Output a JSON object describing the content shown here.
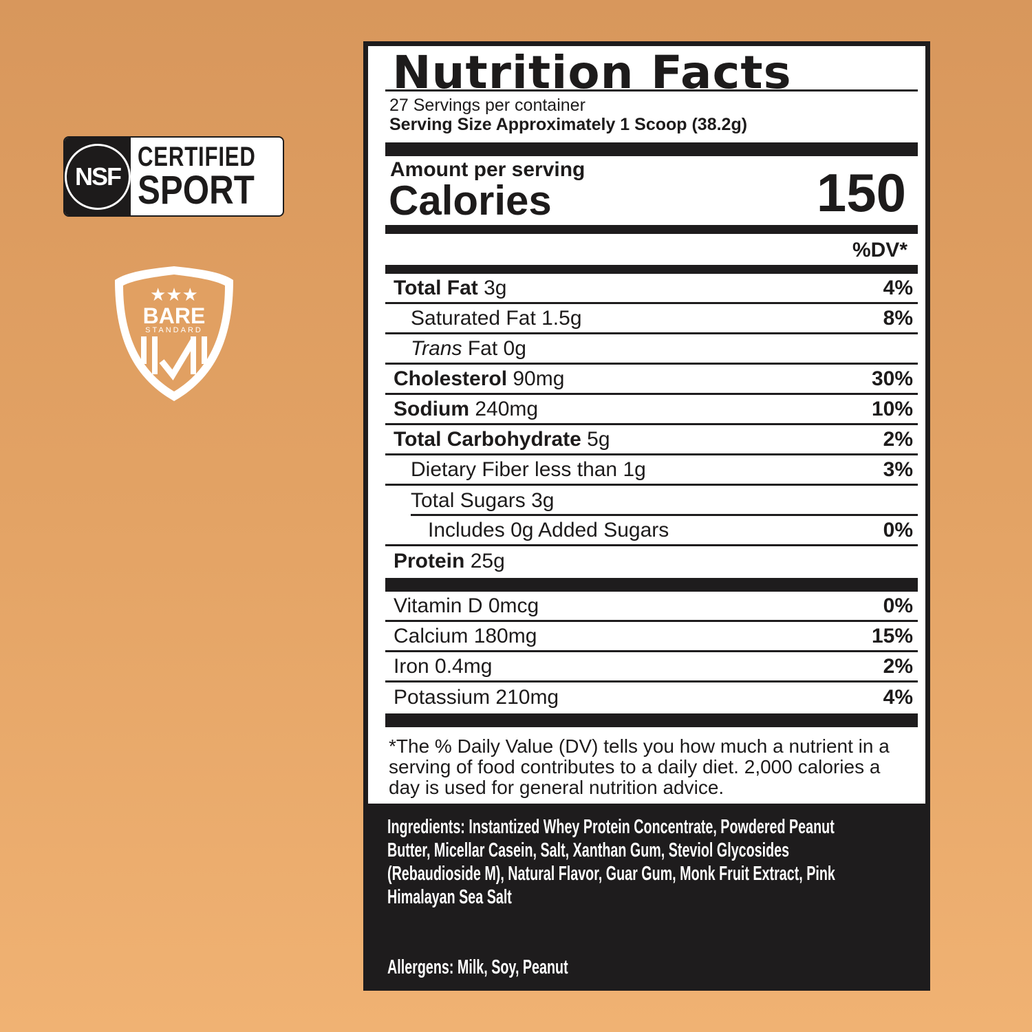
{
  "badges": {
    "nsf": {
      "mark": "NSF",
      "line1": "CERTIFIED",
      "line2": "SPORT"
    },
    "bare": {
      "line1": "BARE",
      "line2": "STANDARD"
    }
  },
  "label": {
    "title": "Nutrition Facts",
    "servings": "27 Servings per container",
    "serving_size": "Serving Size Approximately 1 Scoop (38.2g)",
    "amount_per_serving": "Amount per serving",
    "calories_label": "Calories",
    "calories": "150",
    "dv_header": "%DV*",
    "nutrients": [
      {
        "name": "Total Fat",
        "amount": "3g",
        "dv": "4%",
        "bold": true,
        "indent": 0
      },
      {
        "name": "Saturated Fat",
        "amount": "1.5g",
        "dv": "8%",
        "bold": false,
        "indent": 1
      },
      {
        "name": "Trans",
        "name2": "Fat",
        "amount": "0g",
        "dv": "",
        "bold": false,
        "indent": 1
      },
      {
        "name": "Cholesterol",
        "amount": "90mg",
        "dv": "30%",
        "bold": true,
        "indent": 0
      },
      {
        "name": "Sodium",
        "amount": "240mg",
        "dv": "10%",
        "bold": true,
        "indent": 0
      },
      {
        "name": "Total Carbohydrate",
        "amount": "5g",
        "dv": "2%",
        "bold": true,
        "indent": 0
      },
      {
        "name": "Dietary Fiber less than",
        "amount": "1g",
        "dv": "3%",
        "bold": false,
        "indent": 1
      },
      {
        "name": "Total Sugars",
        "amount": "3g",
        "dv": "",
        "bold": false,
        "indent": 1
      },
      {
        "name": "Includes 0g Added Sugars",
        "amount": "",
        "dv": "0%",
        "bold": false,
        "indent": 2
      },
      {
        "name": "Protein",
        "amount": "25g",
        "dv": "",
        "bold": true,
        "indent": 0
      }
    ],
    "vitamins": [
      {
        "name": "Vitamin D 0mcg",
        "dv": "0%"
      },
      {
        "name": "Calcium 180mg",
        "dv": "15%"
      },
      {
        "name": "Iron 0.4mg",
        "dv": "2%"
      },
      {
        "name": "Potassium 210mg",
        "dv": "4%"
      }
    ],
    "footnote": "*The % Daily Value (DV) tells you how much a nutrient in a serving of food contributes to a daily diet. 2,000 calories a day is used for general nutrition advice."
  },
  "ingredients": {
    "label": "Ingredients:",
    "text": "Instantized Whey Protein Concentrate, Powdered Peanut Butter, Micellar Casein, Salt, Xanthan Gum, Steviol Glycosides (Rebaudioside M), Natural Flavor, Guar Gum, Monk Fruit Extract, Pink Himalayan Sea Salt"
  },
  "allergens": {
    "label": "Allergens:",
    "text": "Milk, Soy, Peanut"
  },
  "colors": {
    "background": "#e3a365",
    "ink": "#1e1c1d"
  }
}
